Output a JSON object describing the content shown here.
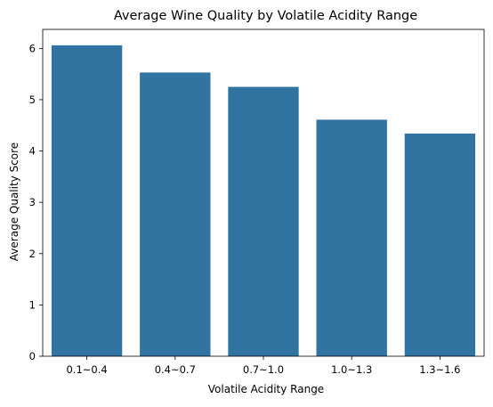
{
  "chart_data": {
    "type": "bar",
    "title": "Average Wine Quality by Volatile Acidity Range",
    "xlabel": "Volatile Acidity Range",
    "ylabel": "Average Quality Score",
    "categories": [
      "0.1~0.4",
      "0.4~0.7",
      "0.7~1.0",
      "1.0~1.3",
      "1.3~1.6"
    ],
    "values": [
      6.06,
      5.53,
      5.25,
      4.61,
      4.34
    ],
    "ylim": [
      0,
      6.37
    ],
    "yticks": [
      "0",
      "1",
      "2",
      "3",
      "4",
      "5",
      "6"
    ],
    "grid": false,
    "legend": "none",
    "bar_color": "#3274a1"
  }
}
